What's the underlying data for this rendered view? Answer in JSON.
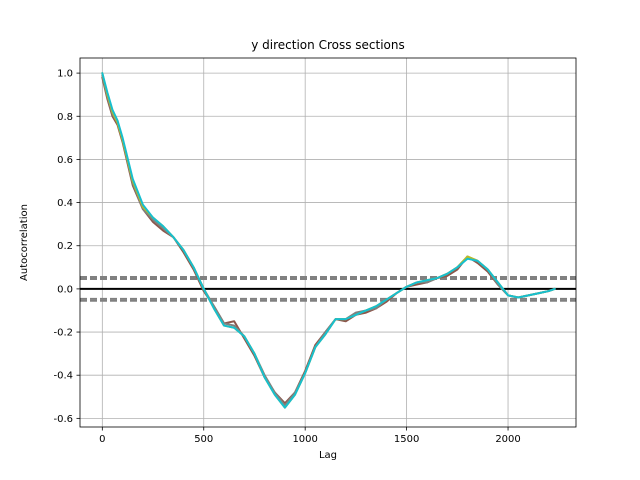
{
  "chart_data": {
    "type": "line",
    "title": "y direction Cross sections",
    "xlabel": "Lag",
    "ylabel": "Autocorrelation",
    "xlim": [
      -110,
      2335
    ],
    "ylim": [
      -0.64,
      1.07
    ],
    "xticks": [
      0,
      500,
      1000,
      1500,
      2000
    ],
    "yticks": [
      -0.6,
      -0.4,
      -0.2,
      0.0,
      0.2,
      0.4,
      0.6,
      0.8,
      1.0
    ],
    "grid": true,
    "zero_line": 0.0,
    "confidence_bands": [
      0.055,
      0.046,
      -0.046,
      -0.055
    ],
    "series": [
      {
        "color": "#8c564b",
        "x": [
          0,
          25,
          50,
          75,
          100,
          150,
          200,
          250,
          300,
          350,
          400,
          450,
          500,
          550,
          600,
          650,
          700,
          750,
          800,
          850,
          900,
          950,
          1000,
          1050,
          1100,
          1150,
          1200,
          1250,
          1300,
          1350,
          1400,
          1450,
          1500,
          1550,
          1600,
          1650,
          1700,
          1750,
          1800,
          1850,
          1900,
          1950,
          2000,
          2050,
          2100,
          2150,
          2200,
          2230
        ],
        "y": [
          0.98,
          0.88,
          0.8,
          0.76,
          0.68,
          0.48,
          0.37,
          0.31,
          0.27,
          0.24,
          0.17,
          0.09,
          -0.01,
          -0.08,
          -0.16,
          -0.15,
          -0.23,
          -0.31,
          -0.41,
          -0.48,
          -0.53,
          -0.48,
          -0.38,
          -0.26,
          -0.2,
          -0.14,
          -0.15,
          -0.12,
          -0.11,
          -0.09,
          -0.06,
          -0.02,
          0.01,
          0.02,
          0.03,
          0.05,
          0.06,
          0.09,
          0.15,
          0.12,
          0.08,
          0.02,
          -0.03,
          -0.04,
          -0.03,
          -0.02,
          -0.01,
          0.0
        ]
      },
      {
        "color": "#7f7f7f",
        "x": [
          0,
          25,
          50,
          75,
          100,
          150,
          200,
          250,
          300,
          350,
          400,
          450,
          500,
          550,
          600,
          650,
          700,
          750,
          800,
          850,
          900,
          950,
          1000,
          1050,
          1100,
          1150,
          1200,
          1250,
          1300,
          1350,
          1400,
          1450,
          1500,
          1550,
          1600,
          1650,
          1700,
          1750,
          1800,
          1850,
          1900,
          1950,
          2000,
          2050,
          2100,
          2150,
          2200,
          2230
        ],
        "y": [
          0.99,
          0.89,
          0.81,
          0.77,
          0.69,
          0.49,
          0.37,
          0.32,
          0.28,
          0.24,
          0.18,
          0.1,
          0.0,
          -0.08,
          -0.16,
          -0.17,
          -0.22,
          -0.3,
          -0.4,
          -0.48,
          -0.54,
          -0.48,
          -0.39,
          -0.27,
          -0.2,
          -0.14,
          -0.14,
          -0.11,
          -0.1,
          -0.09,
          -0.05,
          -0.02,
          0.01,
          0.03,
          0.03,
          0.05,
          0.07,
          0.1,
          0.15,
          0.13,
          0.09,
          0.02,
          -0.03,
          -0.04,
          -0.03,
          -0.02,
          -0.01,
          0.0
        ]
      },
      {
        "color": "#bcbd22",
        "x": [
          0,
          25,
          50,
          75,
          100,
          150,
          200,
          250,
          300,
          350,
          400,
          450,
          500,
          550,
          600,
          650,
          700,
          750,
          800,
          850,
          900,
          950,
          1000,
          1050,
          1100,
          1150,
          1200,
          1250,
          1300,
          1350,
          1400,
          1450,
          1500,
          1550,
          1600,
          1650,
          1700,
          1750,
          1800,
          1850,
          1900,
          1950,
          2000,
          2050,
          2100,
          2150,
          2200,
          2230
        ],
        "y": [
          1.0,
          0.9,
          0.82,
          0.77,
          0.69,
          0.5,
          0.38,
          0.33,
          0.29,
          0.24,
          0.18,
          0.1,
          0.0,
          -0.09,
          -0.17,
          -0.18,
          -0.22,
          -0.3,
          -0.41,
          -0.49,
          -0.55,
          -0.49,
          -0.39,
          -0.27,
          -0.21,
          -0.14,
          -0.14,
          -0.12,
          -0.1,
          -0.08,
          -0.05,
          -0.02,
          0.01,
          0.03,
          0.04,
          0.05,
          0.07,
          0.1,
          0.15,
          0.13,
          0.09,
          0.03,
          -0.03,
          -0.04,
          -0.03,
          -0.02,
          -0.01,
          0.0
        ]
      },
      {
        "color": "#17becf",
        "x": [
          0,
          25,
          50,
          75,
          100,
          150,
          200,
          250,
          300,
          350,
          400,
          450,
          500,
          550,
          600,
          650,
          700,
          750,
          800,
          850,
          900,
          950,
          1000,
          1050,
          1100,
          1150,
          1200,
          1250,
          1300,
          1350,
          1400,
          1450,
          1500,
          1550,
          1600,
          1650,
          1700,
          1750,
          1800,
          1850,
          1900,
          1950,
          2000,
          2050,
          2100,
          2150,
          2200,
          2230
        ],
        "y": [
          1.0,
          0.91,
          0.83,
          0.78,
          0.7,
          0.51,
          0.39,
          0.33,
          0.29,
          0.24,
          0.18,
          0.1,
          0.0,
          -0.09,
          -0.17,
          -0.18,
          -0.22,
          -0.3,
          -0.41,
          -0.49,
          -0.55,
          -0.49,
          -0.39,
          -0.27,
          -0.21,
          -0.14,
          -0.14,
          -0.12,
          -0.1,
          -0.08,
          -0.05,
          -0.02,
          0.01,
          0.03,
          0.04,
          0.05,
          0.07,
          0.1,
          0.14,
          0.13,
          0.09,
          0.03,
          -0.03,
          -0.04,
          -0.03,
          -0.02,
          -0.01,
          0.0
        ]
      }
    ]
  }
}
